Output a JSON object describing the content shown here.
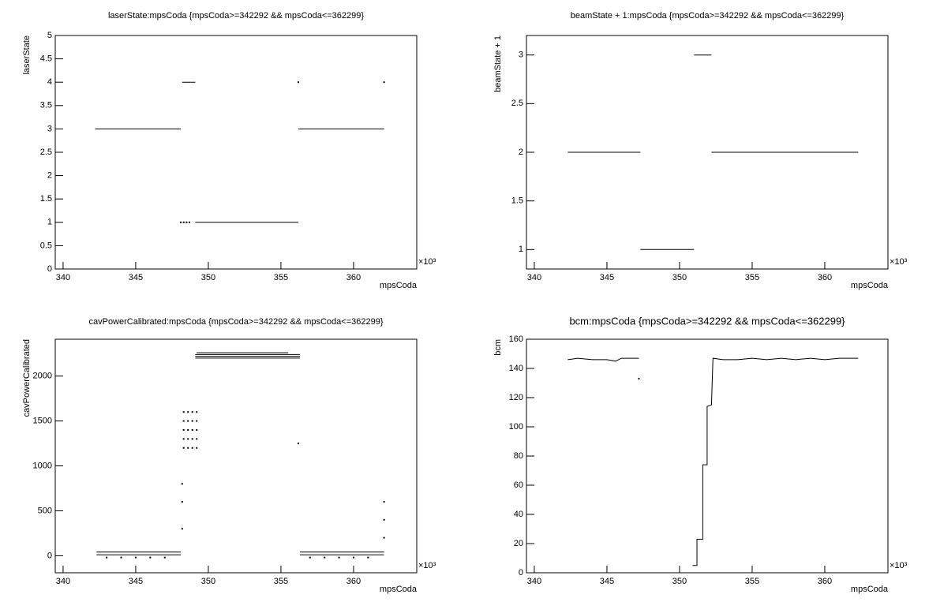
{
  "chart_data": [
    {
      "type": "line",
      "title": "laserState:mpsCoda {mpsCoda>=342292 && mpsCoda<=362299}",
      "x_label": "mpsCoda",
      "y_label": "laserState",
      "x_exponent": "×10³",
      "xlim": [
        339.46,
        364.35
      ],
      "xticks": [
        340,
        345,
        350,
        355,
        360
      ],
      "ylim": [
        0,
        5
      ],
      "yticks": [
        0,
        0.5,
        1,
        1.5,
        2,
        2.5,
        3,
        3.5,
        4,
        4.5,
        5
      ],
      "series": [
        {
          "mode": "lines",
          "color": "#000000",
          "x": [
            342.2,
            348.1,
            null,
            348.2,
            349.1,
            null,
            349.1,
            356.2,
            null,
            356.2,
            362.1
          ],
          "values": [
            3,
            3,
            null,
            4,
            4,
            null,
            1,
            1,
            null,
            3,
            3
          ]
        },
        {
          "mode": "markers",
          "color": "#000000",
          "x": [
            348.1,
            348.3,
            348.5,
            348.7,
            356.2,
            362.1
          ],
          "values": [
            1,
            1,
            1,
            1,
            4,
            4
          ]
        }
      ]
    },
    {
      "type": "line",
      "title": "beamState + 1:mpsCoda {mpsCoda>=342292 && mpsCoda<=362299}",
      "x_label": "mpsCoda",
      "y_label": "beamState + 1",
      "x_exponent": "×10³",
      "xlim": [
        339.46,
        364.35
      ],
      "xticks": [
        340,
        345,
        350,
        355,
        360
      ],
      "ylim": [
        0.8,
        3.2
      ],
      "yticks": [
        1,
        1.5,
        2,
        2.5,
        3
      ],
      "series": [
        {
          "mode": "lines",
          "color": "#000000",
          "x": [
            342.3,
            347.3,
            null,
            347.3,
            351.0,
            null,
            351.0,
            352.2,
            null,
            352.2,
            362.3
          ],
          "values": [
            2,
            2,
            null,
            1,
            1,
            null,
            3,
            3,
            null,
            2,
            2
          ]
        }
      ]
    },
    {
      "type": "line",
      "title": "cavPowerCalibrated:mpsCoda {mpsCoda>=342292 && mpsCoda<=362299}",
      "x_label": "mpsCoda",
      "y_label": "cavPowerCalibrated",
      "x_exponent": "×10³",
      "xlim": [
        339.46,
        364.35
      ],
      "xticks": [
        340,
        345,
        350,
        355,
        360
      ],
      "ylim": [
        -190,
        2410
      ],
      "yticks": [
        0,
        500,
        1000,
        1500,
        2000
      ],
      "series": [
        {
          "mode": "lines",
          "color": "#000000",
          "x": [
            342.3,
            348.1,
            null,
            342.3,
            348.1,
            null,
            349.1,
            356.3,
            null,
            349.1,
            356.3,
            null,
            349.1,
            356.3,
            null,
            349.2,
            355.5,
            null,
            356.3,
            362.1,
            null,
            356.3,
            362.1
          ],
          "values": [
            40,
            40,
            null,
            10,
            10,
            null,
            2200,
            2200,
            null,
            2220,
            2220,
            null,
            2240,
            2240,
            null,
            2260,
            2260,
            null,
            40,
            40,
            null,
            10,
            10
          ]
        },
        {
          "mode": "markers",
          "color": "#000000",
          "x": [
            348.3,
            348.3,
            348.3,
            348.3,
            348.3,
            348.6,
            348.6,
            348.6,
            348.6,
            348.6,
            348.9,
            348.9,
            348.9,
            348.9,
            348.9,
            349.2,
            349.2,
            349.2,
            349.2,
            349.2,
            348.2,
            348.2,
            348.2,
            356.2,
            362.1,
            362.1,
            362.1,
            343,
            344,
            345,
            346,
            347,
            357,
            358,
            359,
            360,
            361
          ],
          "values": [
            1200,
            1300,
            1400,
            1500,
            1600,
            1200,
            1300,
            1400,
            1500,
            1600,
            1200,
            1300,
            1400,
            1500,
            1600,
            1200,
            1300,
            1400,
            1500,
            1600,
            300,
            600,
            800,
            1250,
            200,
            400,
            600,
            -20,
            -20,
            -20,
            -20,
            -20,
            -20,
            -20,
            -20,
            -20,
            -20
          ]
        }
      ]
    },
    {
      "type": "line",
      "title": "bcm:mpsCoda {mpsCoda>=342292 && mpsCoda<=362299}",
      "x_label": "mpsCoda",
      "y_label": "bcm",
      "x_exponent": "×10³",
      "xlim": [
        339.46,
        364.35
      ],
      "xticks": [
        340,
        345,
        350,
        355,
        360
      ],
      "ylim": [
        0,
        160
      ],
      "yticks": [
        0,
        20,
        40,
        60,
        80,
        100,
        120,
        140,
        160
      ],
      "series": [
        {
          "mode": "lines",
          "color": "#000000",
          "x": [
            342.3,
            343,
            344,
            345,
            345.6,
            346,
            347.2,
            null,
            350.9,
            351.2,
            351.2,
            351.6,
            351.6,
            351.9,
            351.9,
            352.2,
            352.3,
            353,
            354,
            355,
            356,
            357,
            358,
            359,
            360,
            361,
            362.3
          ],
          "values": [
            146,
            147,
            146,
            146,
            145,
            147,
            147,
            null,
            5,
            5,
            23,
            23,
            74,
            74,
            114,
            115,
            147,
            146,
            146,
            147,
            146,
            147,
            146,
            147,
            146,
            147,
            147
          ]
        },
        {
          "mode": "markers",
          "color": "#000000",
          "x": [
            347.2
          ],
          "values": [
            133
          ]
        }
      ]
    }
  ]
}
